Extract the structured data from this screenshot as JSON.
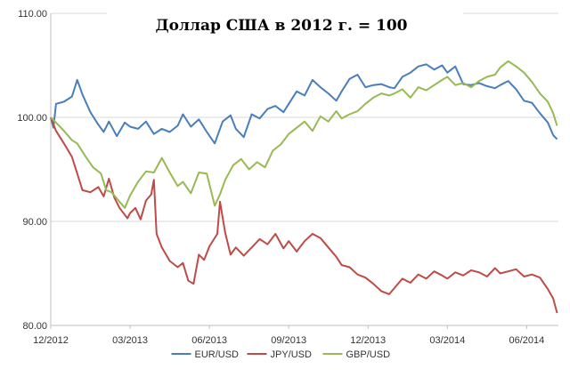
{
  "chart_data": {
    "type": "line",
    "title": "Доллар США в 2012 г. = 100",
    "xlabel": "",
    "ylabel": "",
    "ylim": [
      80,
      110
    ],
    "y_ticks": [
      "110.00",
      "100.00",
      "90.00",
      "80.00"
    ],
    "x_ticks": [
      "12/2012",
      "03/2013",
      "06/2013",
      "09/2013",
      "12/2013",
      "03/2014",
      "06/2014"
    ],
    "grid": "horizontal",
    "legend_position": "bottom",
    "series": [
      {
        "name": "EUR/USD",
        "color": "#4a7ebb",
        "points": [
          [
            0,
            100
          ],
          [
            0.1,
            99
          ],
          [
            0.2,
            101.3
          ],
          [
            0.5,
            101.5
          ],
          [
            0.8,
            102
          ],
          [
            1.0,
            103.6
          ],
          [
            1.2,
            102.2
          ],
          [
            1.5,
            100.5
          ],
          [
            1.8,
            99.3
          ],
          [
            2.0,
            98.6
          ],
          [
            2.2,
            99.6
          ],
          [
            2.5,
            98.2
          ],
          [
            2.8,
            99.5
          ],
          [
            3.0,
            99.1
          ],
          [
            3.3,
            98.9
          ],
          [
            3.6,
            99.6
          ],
          [
            3.9,
            98.4
          ],
          [
            4.2,
            98.9
          ],
          [
            4.5,
            98.6
          ],
          [
            4.8,
            99.2
          ],
          [
            5.0,
            100.3
          ],
          [
            5.3,
            99.1
          ],
          [
            5.6,
            99.8
          ],
          [
            5.9,
            98.6
          ],
          [
            6.2,
            97.5
          ],
          [
            6.5,
            99.6
          ],
          [
            6.8,
            100.2
          ],
          [
            7.0,
            98.9
          ],
          [
            7.3,
            98.1
          ],
          [
            7.6,
            100.3
          ],
          [
            7.9,
            99.9
          ],
          [
            8.2,
            100.8
          ],
          [
            8.5,
            101.1
          ],
          [
            8.8,
            100.5
          ],
          [
            9.0,
            101.3
          ],
          [
            9.3,
            102.5
          ],
          [
            9.6,
            102.1
          ],
          [
            9.9,
            103.6
          ],
          [
            10.2,
            102.9
          ],
          [
            10.5,
            102.3
          ],
          [
            10.8,
            101.6
          ],
          [
            11.0,
            102.5
          ],
          [
            11.3,
            103.7
          ],
          [
            11.6,
            104.1
          ],
          [
            11.9,
            102.9
          ],
          [
            12.2,
            103.1
          ],
          [
            12.5,
            103.2
          ],
          [
            12.8,
            102.9
          ],
          [
            13.0,
            102.8
          ],
          [
            13.3,
            103.9
          ],
          [
            13.6,
            104.3
          ],
          [
            13.9,
            104.9
          ],
          [
            14.2,
            105.1
          ],
          [
            14.5,
            104.6
          ],
          [
            14.8,
            105.0
          ],
          [
            15.0,
            104.3
          ],
          [
            15.3,
            104.9
          ],
          [
            15.6,
            103.2
          ],
          [
            15.9,
            103.1
          ],
          [
            16.2,
            103.3
          ],
          [
            16.5,
            103.0
          ],
          [
            16.8,
            102.8
          ],
          [
            17.0,
            103.1
          ],
          [
            17.3,
            103.5
          ],
          [
            17.6,
            102.7
          ],
          [
            17.9,
            101.6
          ],
          [
            18.2,
            101.4
          ],
          [
            18.5,
            100.4
          ],
          [
            18.8,
            99.5
          ],
          [
            19.0,
            98.3
          ],
          [
            19.15,
            97.9
          ]
        ]
      },
      {
        "name": "JPY/USD",
        "color": "#be4b48",
        "points": [
          [
            0,
            100
          ],
          [
            0.2,
            98.7
          ],
          [
            0.5,
            97.5
          ],
          [
            0.8,
            96.2
          ],
          [
            1.0,
            94.6
          ],
          [
            1.2,
            93.0
          ],
          [
            1.5,
            92.8
          ],
          [
            1.8,
            93.3
          ],
          [
            2.0,
            92.4
          ],
          [
            2.2,
            94.1
          ],
          [
            2.4,
            92.3
          ],
          [
            2.6,
            91.3
          ],
          [
            2.9,
            90.3
          ],
          [
            3.0,
            90.8
          ],
          [
            3.2,
            91.3
          ],
          [
            3.4,
            90.2
          ],
          [
            3.6,
            92.0
          ],
          [
            3.8,
            92.6
          ],
          [
            3.9,
            94.0
          ],
          [
            4.0,
            88.8
          ],
          [
            4.2,
            87.5
          ],
          [
            4.5,
            86.2
          ],
          [
            4.8,
            85.6
          ],
          [
            5.0,
            86.0
          ],
          [
            5.2,
            84.3
          ],
          [
            5.4,
            84.0
          ],
          [
            5.6,
            86.8
          ],
          [
            5.8,
            86.3
          ],
          [
            6.0,
            87.6
          ],
          [
            6.3,
            88.8
          ],
          [
            6.4,
            91.9
          ],
          [
            6.6,
            88.9
          ],
          [
            6.8,
            86.8
          ],
          [
            7.0,
            87.5
          ],
          [
            7.3,
            86.7
          ],
          [
            7.6,
            87.5
          ],
          [
            7.9,
            88.3
          ],
          [
            8.2,
            87.8
          ],
          [
            8.5,
            88.8
          ],
          [
            8.8,
            87.4
          ],
          [
            9.0,
            88.1
          ],
          [
            9.3,
            87.1
          ],
          [
            9.6,
            88.1
          ],
          [
            9.9,
            88.8
          ],
          [
            10.2,
            88.4
          ],
          [
            10.5,
            87.5
          ],
          [
            10.8,
            86.6
          ],
          [
            11.0,
            85.8
          ],
          [
            11.3,
            85.6
          ],
          [
            11.6,
            84.9
          ],
          [
            11.9,
            84.6
          ],
          [
            12.2,
            84.0
          ],
          [
            12.5,
            83.3
          ],
          [
            12.8,
            83.0
          ],
          [
            13.0,
            83.6
          ],
          [
            13.3,
            84.5
          ],
          [
            13.6,
            84.1
          ],
          [
            13.9,
            84.9
          ],
          [
            14.2,
            84.5
          ],
          [
            14.5,
            85.2
          ],
          [
            14.8,
            84.8
          ],
          [
            15.0,
            84.5
          ],
          [
            15.3,
            85.1
          ],
          [
            15.6,
            84.8
          ],
          [
            15.9,
            85.3
          ],
          [
            16.2,
            85.1
          ],
          [
            16.5,
            84.7
          ],
          [
            16.8,
            85.5
          ],
          [
            17.0,
            85.0
          ],
          [
            17.3,
            85.2
          ],
          [
            17.6,
            85.4
          ],
          [
            17.9,
            84.7
          ],
          [
            18.2,
            84.9
          ],
          [
            18.5,
            84.6
          ],
          [
            18.8,
            83.5
          ],
          [
            19.0,
            82.6
          ],
          [
            19.15,
            81.2
          ]
        ]
      },
      {
        "name": "GBP/USD",
        "color": "#98b954",
        "points": [
          [
            0,
            100
          ],
          [
            0.2,
            99.5
          ],
          [
            0.5,
            98.7
          ],
          [
            0.8,
            97.8
          ],
          [
            1.0,
            97.5
          ],
          [
            1.3,
            96.3
          ],
          [
            1.6,
            95.2
          ],
          [
            1.9,
            94.6
          ],
          [
            2.1,
            93.0
          ],
          [
            2.3,
            92.8
          ],
          [
            2.5,
            92.2
          ],
          [
            2.8,
            91.3
          ],
          [
            3.0,
            92.5
          ],
          [
            3.3,
            93.8
          ],
          [
            3.6,
            94.8
          ],
          [
            3.9,
            94.7
          ],
          [
            4.2,
            96.1
          ],
          [
            4.5,
            94.7
          ],
          [
            4.8,
            93.4
          ],
          [
            5.0,
            93.8
          ],
          [
            5.3,
            92.7
          ],
          [
            5.6,
            94.7
          ],
          [
            5.9,
            94.6
          ],
          [
            6.2,
            91.5
          ],
          [
            6.4,
            92.6
          ],
          [
            6.6,
            94.0
          ],
          [
            6.9,
            95.4
          ],
          [
            7.2,
            96.0
          ],
          [
            7.5,
            95.0
          ],
          [
            7.8,
            95.7
          ],
          [
            8.1,
            95.2
          ],
          [
            8.4,
            96.8
          ],
          [
            8.7,
            97.4
          ],
          [
            9.0,
            98.4
          ],
          [
            9.3,
            99.0
          ],
          [
            9.6,
            99.6
          ],
          [
            9.9,
            98.7
          ],
          [
            10.2,
            100.1
          ],
          [
            10.5,
            99.6
          ],
          [
            10.8,
            100.6
          ],
          [
            11.0,
            99.9
          ],
          [
            11.3,
            100.3
          ],
          [
            11.6,
            100.6
          ],
          [
            11.9,
            101.3
          ],
          [
            12.2,
            101.9
          ],
          [
            12.5,
            102.3
          ],
          [
            12.8,
            102.1
          ],
          [
            13.0,
            102.3
          ],
          [
            13.3,
            102.7
          ],
          [
            13.6,
            101.9
          ],
          [
            13.9,
            102.9
          ],
          [
            14.2,
            102.6
          ],
          [
            14.5,
            103.1
          ],
          [
            14.8,
            103.6
          ],
          [
            15.0,
            103.9
          ],
          [
            15.3,
            103.1
          ],
          [
            15.6,
            103.3
          ],
          [
            15.9,
            102.9
          ],
          [
            16.2,
            103.5
          ],
          [
            16.5,
            103.9
          ],
          [
            16.8,
            104.1
          ],
          [
            17.0,
            104.8
          ],
          [
            17.3,
            105.4
          ],
          [
            17.6,
            104.9
          ],
          [
            17.9,
            104.3
          ],
          [
            18.2,
            103.4
          ],
          [
            18.5,
            102.3
          ],
          [
            18.8,
            101.5
          ],
          [
            19.0,
            100.4
          ],
          [
            19.15,
            99.2
          ]
        ]
      }
    ]
  }
}
